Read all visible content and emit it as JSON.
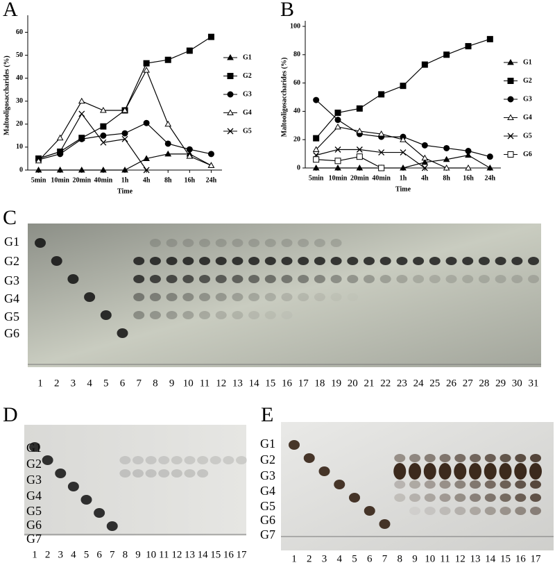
{
  "chart_data": [
    {
      "type": "line",
      "panel": "A",
      "x_label": "Time",
      "y_label": "Maltooligosaccharides (%)",
      "categories": [
        "5min",
        "10min",
        "20min",
        "40min",
        "1h",
        "4h",
        "8h",
        "16h",
        "24h"
      ],
      "ylim": [
        0,
        65
      ],
      "yticks": [
        0,
        10,
        20,
        30,
        40,
        50,
        60
      ],
      "series": [
        {
          "name": "G1",
          "color": "#000000",
          "marker": "filled-triangle",
          "values": [
            0,
            0,
            0,
            0,
            0,
            5,
            7,
            7,
            2
          ]
        },
        {
          "name": "G2",
          "color": "#000000",
          "marker": "filled-square",
          "values": [
            5,
            8,
            14,
            19,
            26,
            46.5,
            48,
            52,
            58
          ]
        },
        {
          "name": "G3",
          "color": "#000000",
          "marker": "circle",
          "values": [
            4.5,
            7,
            13.5,
            15,
            16,
            20.5,
            11.5,
            9,
            7
          ]
        },
        {
          "name": "G4",
          "color": "#000000",
          "marker": "open-triangle",
          "values": [
            4,
            14,
            30,
            26,
            26,
            43.5,
            20,
            6,
            2
          ]
        },
        {
          "name": "G5",
          "color": "#000000",
          "marker": "x",
          "values": [
            5,
            8,
            24.5,
            12,
            13.5,
            0,
            null,
            null,
            null
          ]
        }
      ]
    },
    {
      "type": "line",
      "panel": "B",
      "x_label": "Time",
      "y_label": "Maltooligosaccharides (%)",
      "categories": [
        "5min",
        "10min",
        "20min",
        "40min",
        "1h",
        "4h",
        "8h",
        "16h",
        "24h"
      ],
      "ylim": [
        0,
        100
      ],
      "yticks": [
        0,
        20,
        40,
        60,
        80,
        100
      ],
      "series": [
        {
          "name": "G1",
          "color": "#000000",
          "marker": "filled-triangle",
          "values": [
            0,
            0,
            0,
            0,
            0,
            4,
            6,
            9,
            0
          ]
        },
        {
          "name": "G2",
          "color": "#000000",
          "marker": "filled-square",
          "values": [
            21,
            39,
            42,
            52,
            58,
            73,
            80,
            86,
            91
          ]
        },
        {
          "name": "G3",
          "color": "#000000",
          "marker": "circle",
          "values": [
            48,
            34,
            24,
            22,
            22,
            16,
            14,
            12,
            8
          ]
        },
        {
          "name": "G4",
          "color": "#000000",
          "marker": "open-triangle",
          "values": [
            13,
            29,
            26,
            24,
            20,
            7,
            0,
            0,
            null
          ]
        },
        {
          "name": "G5",
          "color": "#000000",
          "marker": "x",
          "values": [
            9,
            13,
            13,
            11,
            11,
            0,
            null,
            null,
            null
          ]
        },
        {
          "name": "G6",
          "color": "#000000",
          "marker": "open-square",
          "values": [
            6,
            5,
            8,
            0,
            null,
            null,
            null,
            null,
            null
          ]
        }
      ]
    }
  ],
  "plates": [
    {
      "panel": "C",
      "bands": [
        "G1",
        "G2",
        "G3",
        "G4",
        "G5",
        "G6"
      ],
      "lanes": [
        "1",
        "2",
        "3",
        "4",
        "5",
        "6",
        "7",
        "8",
        "9",
        "10",
        "11",
        "12",
        "13",
        "14",
        "15",
        "16",
        "17",
        "18",
        "19",
        "20",
        "21",
        "22",
        "23",
        "24",
        "25",
        "26",
        "27",
        "28",
        "29",
        "30",
        "31"
      ]
    },
    {
      "panel": "D",
      "bands": [
        "G1",
        "G2",
        "G3",
        "G4",
        "G5",
        "G6",
        "G7"
      ],
      "lanes": [
        "1",
        "2",
        "3",
        "4",
        "5",
        "6",
        "7",
        "8",
        "9",
        "10",
        "11",
        "12",
        "13",
        "14",
        "15",
        "16",
        "17"
      ]
    },
    {
      "panel": "E",
      "bands": [
        "G1",
        "G2",
        "G3",
        "G4",
        "G5",
        "G6",
        "G7"
      ],
      "lanes": [
        "1",
        "2",
        "3",
        "4",
        "5",
        "6",
        "7",
        "8",
        "9",
        "10",
        "11",
        "12",
        "13",
        "14",
        "15",
        "16",
        "17"
      ]
    }
  ]
}
